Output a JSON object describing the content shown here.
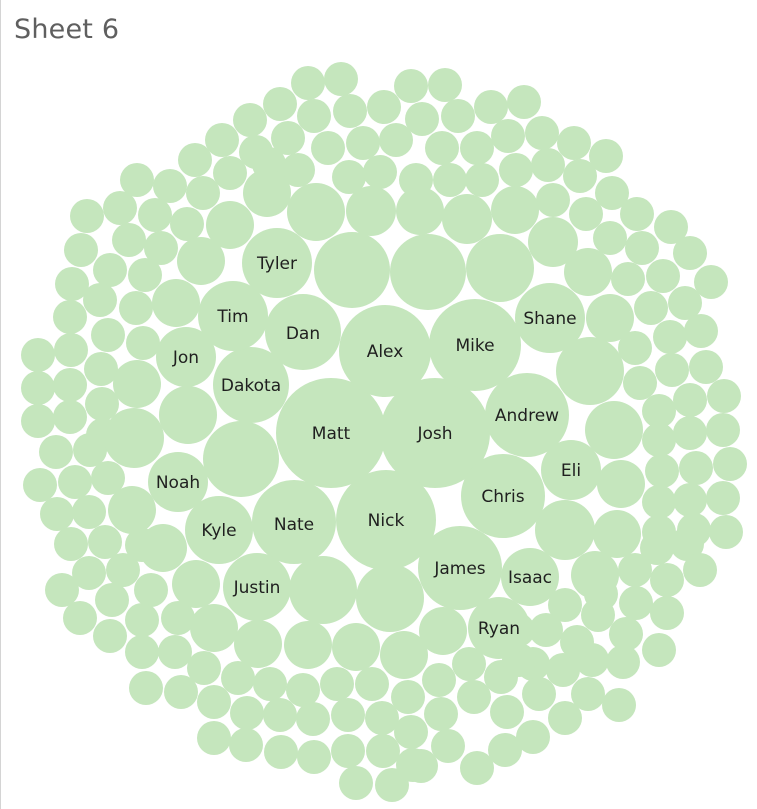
{
  "sheet": {
    "title": "Sheet 6"
  },
  "colors": {
    "bubble": "#c5e6bd",
    "label": "#1f1f1f",
    "title": "#5f5f5f"
  },
  "chart_data": {
    "type": "packed-bubble",
    "title": "Sheet 6",
    "labeled_bubbles": [
      {
        "name": "Matt",
        "size": 100
      },
      {
        "name": "Josh",
        "size": 100
      },
      {
        "name": "Nick",
        "size": 83
      },
      {
        "name": "Alex",
        "size": 73
      },
      {
        "name": "Mike",
        "size": 73
      },
      {
        "name": "Dan",
        "size": 50
      },
      {
        "name": "Nate",
        "size": 59
      },
      {
        "name": "Andrew",
        "size": 59
      },
      {
        "name": "Chris",
        "size": 59
      },
      {
        "name": "James",
        "size": 59
      },
      {
        "name": "Dakota",
        "size": 49
      },
      {
        "name": "Tim",
        "size": 41
      },
      {
        "name": "Tyler",
        "size": 41
      },
      {
        "name": "Shane",
        "size": 41
      },
      {
        "name": "Kyle",
        "size": 40
      },
      {
        "name": "Justin",
        "size": 40
      },
      {
        "name": "Ryan",
        "size": 33
      },
      {
        "name": "Isaac",
        "size": 30
      },
      {
        "name": "Noah",
        "size": 30
      },
      {
        "name": "Eli",
        "size": 30
      },
      {
        "name": "Jon",
        "size": 30
      }
    ],
    "unlabeled_bubble_count": 279
  }
}
